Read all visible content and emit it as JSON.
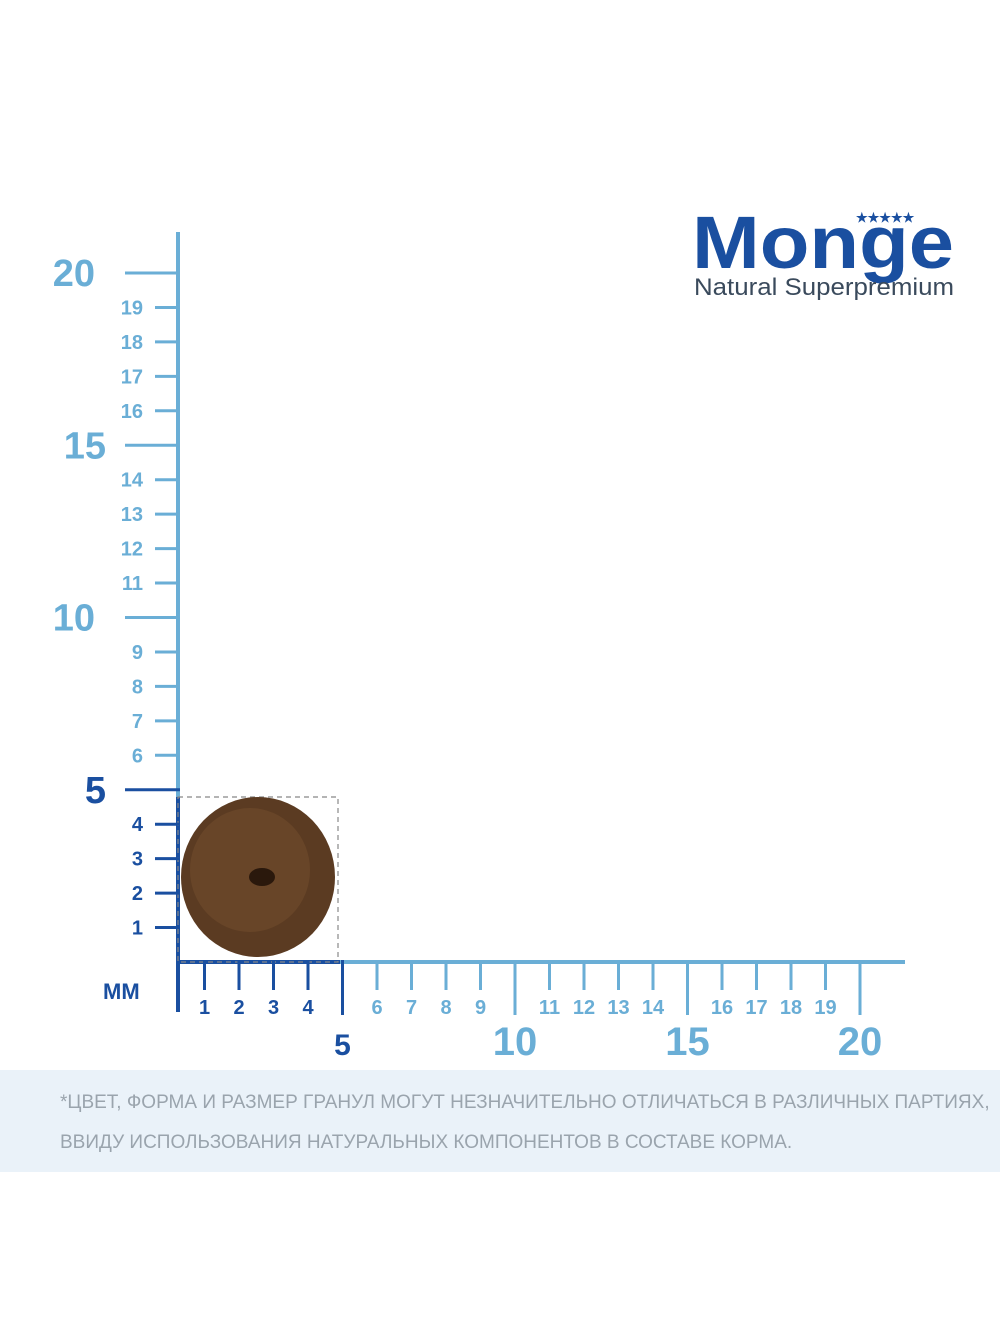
{
  "logo": {
    "brand": "Monge",
    "tagline": "Natural Superpremium"
  },
  "ruler": {
    "unit": "ММ",
    "y_labels": [
      1,
      2,
      3,
      4,
      5,
      6,
      7,
      8,
      9,
      10,
      11,
      12,
      13,
      14,
      15,
      16,
      17,
      18,
      19,
      20
    ],
    "x_labels": [
      1,
      2,
      3,
      4,
      5,
      6,
      7,
      8,
      9,
      10,
      11,
      12,
      13,
      14,
      15,
      16,
      17,
      18,
      19,
      20
    ]
  },
  "disclaimer": [
    "*ЦВЕТ, ФОРМА И РАЗМЕР ГРАНУЛ МОГУТ НЕЗНАЧИТЕЛЬНО ОТЛИЧАТЬСЯ В РАЗЛИЧНЫХ ПАРТИЯХ,",
    "ВВИДУ ИСПОЛЬЗОВАНИЯ НАТУРАЛЬНЫХ КОМПОНЕНТОВ В СОСТАВЕ КОРМА."
  ]
}
